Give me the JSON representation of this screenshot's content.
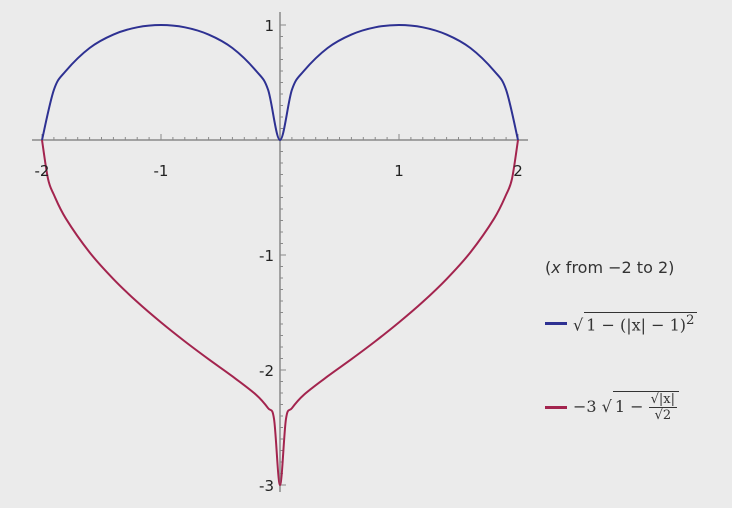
{
  "chart_data": {
    "type": "line",
    "title": "",
    "xlabel": "",
    "ylabel": "",
    "xlim": [
      -2,
      2
    ],
    "ylim": [
      -3,
      1
    ],
    "grid": false,
    "legend_placement": "right",
    "x_ticks": [
      "-2",
      "-1",
      "1",
      "2"
    ],
    "y_ticks": [
      "1",
      "-1",
      "-2",
      "-3"
    ],
    "x_tick_values": [
      -2,
      -1,
      1,
      2
    ],
    "y_tick_values": [
      1,
      -1,
      -2,
      -3
    ],
    "series": [
      {
        "formula": "√(1 − (|x| − 1)^2)",
        "color": "#2e3192",
        "x": [
          -2,
          -1.9,
          -1.8,
          -1.6,
          -1.4,
          -1.2,
          -1,
          -0.8,
          -0.6,
          -0.4,
          -0.2,
          -0.1,
          0,
          0.1,
          0.2,
          0.4,
          0.6,
          0.8,
          1,
          1.2,
          1.4,
          1.6,
          1.8,
          1.9,
          2
        ],
        "y": [
          0,
          0.436,
          0.6,
          0.8,
          0.917,
          0.98,
          1,
          0.98,
          0.917,
          0.8,
          0.6,
          0.436,
          0,
          0.436,
          0.6,
          0.8,
          0.917,
          0.98,
          1,
          0.98,
          0.917,
          0.8,
          0.6,
          0.436,
          0
        ]
      },
      {
        "formula": "−3 √(1 − √|x| / √2)",
        "color": "#a3244e",
        "x": [
          -2,
          -1.95,
          -1.9,
          -1.8,
          -1.6,
          -1.4,
          -1.2,
          -1,
          -0.8,
          -0.6,
          -0.4,
          -0.2,
          -0.1,
          -0.05,
          0,
          0.05,
          0.1,
          0.2,
          0.4,
          0.6,
          0.8,
          1,
          1.2,
          1.4,
          1.6,
          1.8,
          1.9,
          1.95,
          2
        ],
        "y": [
          0,
          -0.335,
          -0.476,
          -0.682,
          -0.977,
          -1.209,
          -1.408,
          -1.586,
          -1.751,
          -1.906,
          -2.055,
          -2.216,
          -2.332,
          -2.427,
          -3,
          -2.427,
          -2.332,
          -2.216,
          -2.055,
          -1.906,
          -1.751,
          -1.586,
          -1.408,
          -1.209,
          -0.977,
          -0.682,
          -0.476,
          -0.335,
          0
        ]
      }
    ]
  },
  "legend": {
    "range_var": "x",
    "range_text": " from −2 to 2)",
    "range_open": "(",
    "s1_outer": "1 − (|x| − 1)",
    "s1_exp": "2",
    "s2_coef": "−3",
    "s2_one": "1 −",
    "s2_num": "√|x|",
    "s2_den": "√2"
  }
}
